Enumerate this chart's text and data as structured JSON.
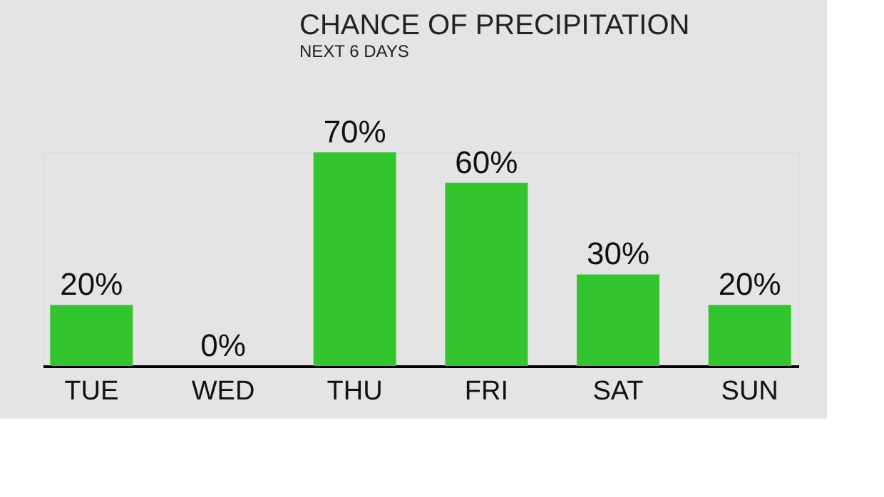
{
  "chart_data": {
    "type": "bar",
    "title": "CHANCE OF PRECIPITATION",
    "subtitle": "NEXT 6 DAYS",
    "categories": [
      "TUE",
      "WED",
      "THU",
      "FRI",
      "SAT",
      "SUN"
    ],
    "values": [
      20,
      0,
      70,
      60,
      30,
      20
    ],
    "value_labels": [
      "20%",
      "0%",
      "70%",
      "60%",
      "30%",
      "20%"
    ],
    "color": "#33c52f",
    "grid": false
  }
}
